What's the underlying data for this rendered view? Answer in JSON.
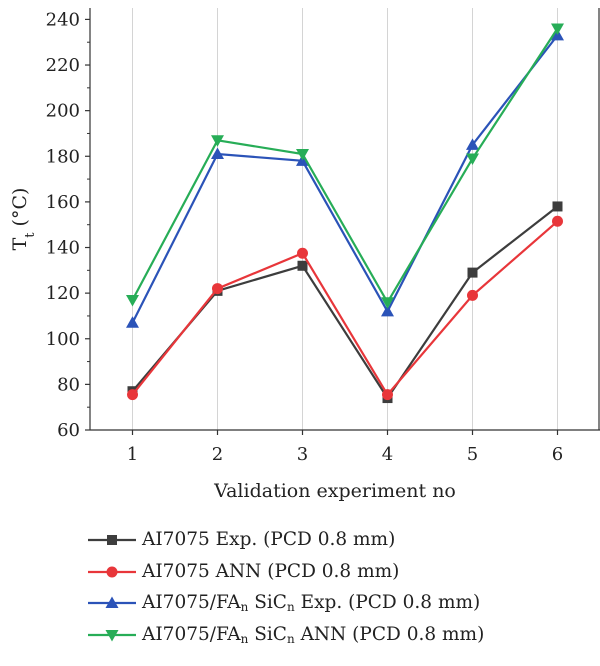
{
  "chart_data": {
    "type": "line",
    "xlabel": "Validation experiment no",
    "ylabel": {
      "main": "T",
      "sub": "t",
      "unit": " (°C)"
    },
    "x": [
      1,
      2,
      3,
      4,
      5,
      6
    ],
    "xlim": [
      0.5,
      6.5
    ],
    "ylim": [
      60,
      245
    ],
    "yticks": [
      60,
      80,
      100,
      120,
      140,
      160,
      180,
      200,
      220,
      240
    ],
    "grid": "vertical",
    "legend_placement": "bottom",
    "series": [
      {
        "name": "AI7075 Exp. (PCD 0.8 mm)",
        "name_parts": [
          {
            "t": "AI7075 Exp. (PCD 0.8 mm)"
          }
        ],
        "marker": "square",
        "color": "#3d3d3d",
        "values": [
          77,
          121,
          132,
          74,
          129,
          158
        ]
      },
      {
        "name": "AI7075 ANN (PCD 0.8 mm)",
        "name_parts": [
          {
            "t": "AI7075 ANN (PCD 0.8 mm)"
          }
        ],
        "marker": "circle",
        "color": "#e8363a",
        "values": [
          75.5,
          122,
          137.5,
          75.5,
          119,
          151.5
        ]
      },
      {
        "name": "AI7075/FAn SiCn Exp. (PCD 0.8 mm)",
        "name_parts": [
          {
            "t": "AI7075/FA"
          },
          {
            "t": "n",
            "sub": true
          },
          {
            "t": " SiC"
          },
          {
            "t": "n",
            "sub": true
          },
          {
            "t": " Exp. (PCD 0.8 mm)"
          }
        ],
        "marker": "triangle-up",
        "color": "#2b53b8",
        "values": [
          107,
          181,
          178,
          112,
          185,
          233
        ]
      },
      {
        "name": "AI7075/FAn SiCn ANN (PCD 0.8 mm)",
        "name_parts": [
          {
            "t": "AI7075/FA"
          },
          {
            "t": "n",
            "sub": true
          },
          {
            "t": " SiC"
          },
          {
            "t": "n",
            "sub": true
          },
          {
            "t": " ANN (PCD 0.8 mm)"
          }
        ],
        "marker": "triangle-down",
        "color": "#27ad57",
        "values": [
          117,
          187,
          181,
          116,
          179,
          236
        ]
      }
    ]
  }
}
